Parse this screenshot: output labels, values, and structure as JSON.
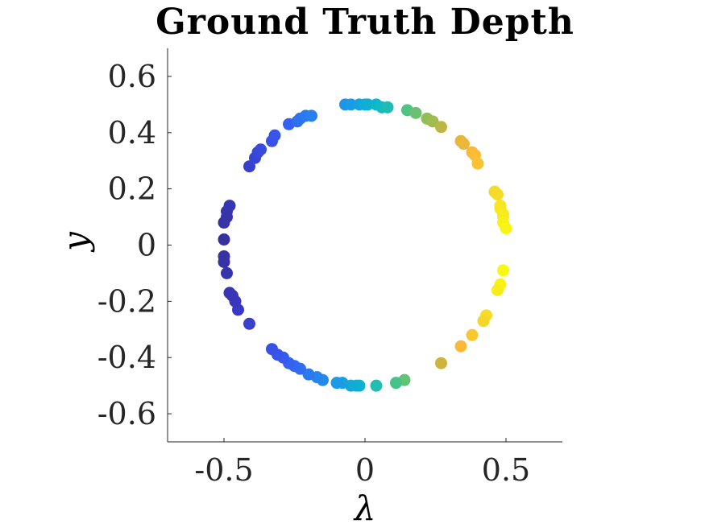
{
  "chart_data": {
    "type": "scatter",
    "title": "Ground Truth Depth",
    "xlabel": "λ",
    "ylabel": "y",
    "xlim": [
      -0.7,
      0.7
    ],
    "ylim": [
      -0.7,
      0.7
    ],
    "xticks": [
      "-0.5",
      "0",
      "0.5"
    ],
    "xtick_values": [
      -0.5,
      0,
      0.5
    ],
    "yticks": [
      "0.6",
      "0.4",
      "0.2",
      "0",
      "-0.2",
      "-0.4",
      "-0.6"
    ],
    "ytick_values": [
      0.6,
      0.4,
      0.2,
      0,
      -0.2,
      -0.4,
      -0.6
    ],
    "grid": false,
    "legend": "none",
    "colormap": "parula",
    "points": [
      {
        "x": -0.07,
        "y": 0.5,
        "c": 0.3
      },
      {
        "x": -0.05,
        "y": 0.5,
        "c": 0.31
      },
      {
        "x": -0.02,
        "y": 0.5,
        "c": 0.33
      },
      {
        "x": 0.0,
        "y": 0.5,
        "c": 0.35
      },
      {
        "x": 0.01,
        "y": 0.5,
        "c": 0.36
      },
      {
        "x": 0.04,
        "y": 0.5,
        "c": 0.38
      },
      {
        "x": 0.06,
        "y": 0.49,
        "c": 0.4
      },
      {
        "x": 0.08,
        "y": 0.49,
        "c": 0.42
      },
      {
        "x": 0.15,
        "y": 0.48,
        "c": 0.5
      },
      {
        "x": 0.18,
        "y": 0.47,
        "c": 0.53
      },
      {
        "x": 0.22,
        "y": 0.45,
        "c": 0.57
      },
      {
        "x": 0.24,
        "y": 0.44,
        "c": 0.59
      },
      {
        "x": 0.27,
        "y": 0.42,
        "c": 0.62
      },
      {
        "x": 0.34,
        "y": 0.37,
        "c": 0.7
      },
      {
        "x": 0.35,
        "y": 0.36,
        "c": 0.71
      },
      {
        "x": 0.38,
        "y": 0.33,
        "c": 0.74
      },
      {
        "x": 0.39,
        "y": 0.32,
        "c": 0.75
      },
      {
        "x": 0.4,
        "y": 0.29,
        "c": 0.77
      },
      {
        "x": 0.46,
        "y": 0.19,
        "c": 0.85
      },
      {
        "x": 0.47,
        "y": 0.18,
        "c": 0.86
      },
      {
        "x": 0.48,
        "y": 0.14,
        "c": 0.9
      },
      {
        "x": 0.48,
        "y": 0.13,
        "c": 0.91
      },
      {
        "x": 0.49,
        "y": 0.11,
        "c": 0.92
      },
      {
        "x": 0.49,
        "y": 0.1,
        "c": 0.93
      },
      {
        "x": 0.49,
        "y": 0.08,
        "c": 0.95
      },
      {
        "x": 0.5,
        "y": 0.06,
        "c": 0.97
      },
      {
        "x": 0.49,
        "y": -0.09,
        "c": 0.99
      },
      {
        "x": 0.48,
        "y": -0.14,
        "c": 0.96
      },
      {
        "x": 0.47,
        "y": -0.16,
        "c": 0.94
      },
      {
        "x": 0.43,
        "y": -0.25,
        "c": 0.86
      },
      {
        "x": 0.42,
        "y": -0.27,
        "c": 0.84
      },
      {
        "x": 0.38,
        "y": -0.32,
        "c": 0.79
      },
      {
        "x": 0.34,
        "y": -0.36,
        "c": 0.74
      },
      {
        "x": 0.27,
        "y": -0.42,
        "c": 0.64
      },
      {
        "x": 0.14,
        "y": -0.48,
        "c": 0.52
      },
      {
        "x": 0.11,
        "y": -0.49,
        "c": 0.49
      },
      {
        "x": 0.04,
        "y": -0.5,
        "c": 0.43
      },
      {
        "x": -0.02,
        "y": -0.5,
        "c": 0.37
      },
      {
        "x": -0.03,
        "y": -0.5,
        "c": 0.36
      },
      {
        "x": -0.05,
        "y": -0.5,
        "c": 0.35
      },
      {
        "x": -0.08,
        "y": -0.49,
        "c": 0.33
      },
      {
        "x": -0.1,
        "y": -0.49,
        "c": 0.31
      },
      {
        "x": -0.15,
        "y": -0.48,
        "c": 0.28
      },
      {
        "x": -0.17,
        "y": -0.47,
        "c": 0.27
      },
      {
        "x": -0.2,
        "y": -0.46,
        "c": 0.25
      },
      {
        "x": -0.23,
        "y": -0.44,
        "c": 0.23
      },
      {
        "x": -0.25,
        "y": -0.43,
        "c": 0.22
      },
      {
        "x": -0.27,
        "y": -0.42,
        "c": 0.21
      },
      {
        "x": -0.29,
        "y": -0.4,
        "c": 0.19
      },
      {
        "x": -0.31,
        "y": -0.39,
        "c": 0.18
      },
      {
        "x": -0.33,
        "y": -0.37,
        "c": 0.17
      },
      {
        "x": -0.41,
        "y": -0.28,
        "c": 0.12
      },
      {
        "x": -0.45,
        "y": -0.23,
        "c": 0.1
      },
      {
        "x": -0.46,
        "y": -0.2,
        "c": 0.09
      },
      {
        "x": -0.47,
        "y": -0.18,
        "c": 0.08
      },
      {
        "x": -0.48,
        "y": -0.17,
        "c": 0.08
      },
      {
        "x": -0.49,
        "y": -0.1,
        "c": 0.06
      },
      {
        "x": -0.5,
        "y": -0.06,
        "c": 0.05
      },
      {
        "x": -0.5,
        "y": -0.04,
        "c": 0.05
      },
      {
        "x": -0.5,
        "y": 0.02,
        "c": 0.04
      },
      {
        "x": -0.5,
        "y": 0.08,
        "c": 0.05
      },
      {
        "x": -0.49,
        "y": 0.1,
        "c": 0.06
      },
      {
        "x": -0.49,
        "y": 0.12,
        "c": 0.06
      },
      {
        "x": -0.48,
        "y": 0.14,
        "c": 0.07
      },
      {
        "x": -0.41,
        "y": 0.28,
        "c": 0.12
      },
      {
        "x": -0.39,
        "y": 0.31,
        "c": 0.13
      },
      {
        "x": -0.38,
        "y": 0.33,
        "c": 0.14
      },
      {
        "x": -0.37,
        "y": 0.34,
        "c": 0.15
      },
      {
        "x": -0.33,
        "y": 0.37,
        "c": 0.17
      },
      {
        "x": -0.32,
        "y": 0.39,
        "c": 0.18
      },
      {
        "x": -0.27,
        "y": 0.43,
        "c": 0.21
      },
      {
        "x": -0.24,
        "y": 0.44,
        "c": 0.23
      },
      {
        "x": -0.23,
        "y": 0.45,
        "c": 0.24
      },
      {
        "x": -0.21,
        "y": 0.46,
        "c": 0.25
      },
      {
        "x": -0.19,
        "y": 0.46,
        "c": 0.26
      }
    ]
  }
}
